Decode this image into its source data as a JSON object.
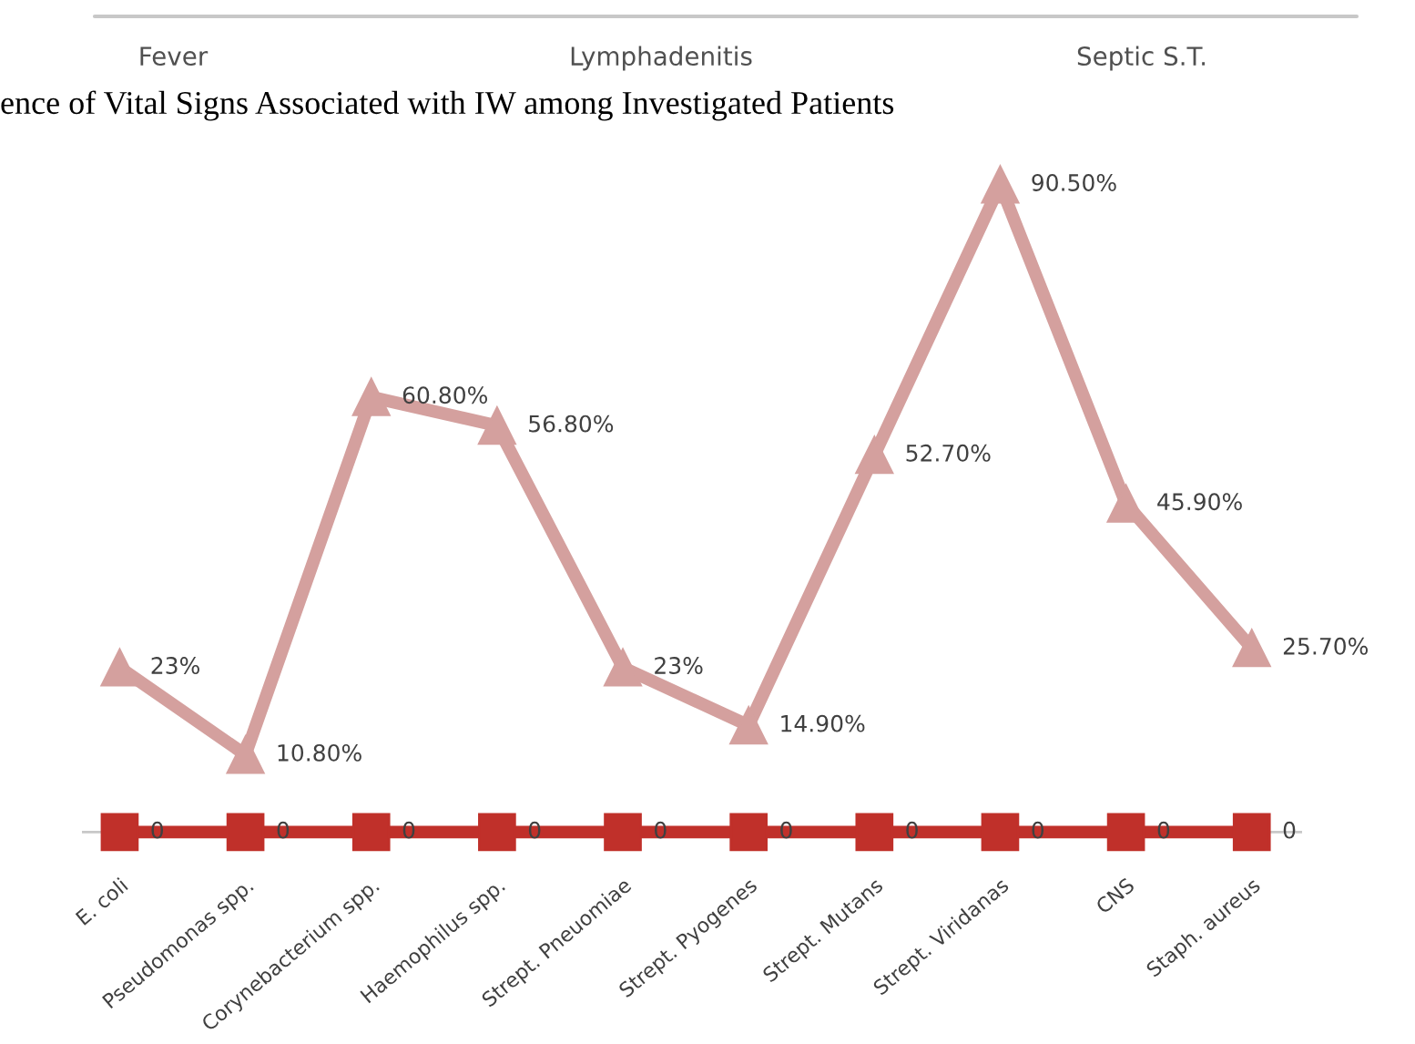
{
  "chart_data": {
    "type": "line",
    "title": "ence of Vital Signs Associated with IW among Investigated Patients",
    "annotations": [
      "Fever",
      "Lymphadenitis",
      "Septic S.T."
    ],
    "categories": [
      "E. coli",
      "Pseudomonas spp.",
      "Corynebacterium spp.",
      "Haemophilus spp.",
      "Strept. Pneuomiae",
      "Strept. Pyogenes",
      "Strept. Mutans",
      "Strept. Viridanas",
      "CNS",
      "Staph. aureus"
    ],
    "series": [
      {
        "color": "#d4a09e",
        "marker": "triangle",
        "values": [
          23,
          10.8,
          60.8,
          56.8,
          23,
          14.9,
          52.7,
          90.5,
          45.9,
          25.7
        ],
        "value_labels": [
          "23%",
          "10.80%",
          "60.80%",
          "56.80%",
          "23%",
          "14.90%",
          "52.70%",
          "90.50%",
          "45.90%",
          "25.70%"
        ]
      },
      {
        "color": "#c0302a",
        "marker": "square",
        "values": [
          0,
          0,
          0,
          0,
          0,
          0,
          0,
          0,
          0,
          0
        ],
        "value_labels": [
          "0",
          "0",
          "0",
          "0",
          "0",
          "0",
          "0",
          "0",
          "0",
          "0"
        ]
      }
    ],
    "tick_labels": "x",
    "grid": false,
    "line_style": "solid"
  }
}
